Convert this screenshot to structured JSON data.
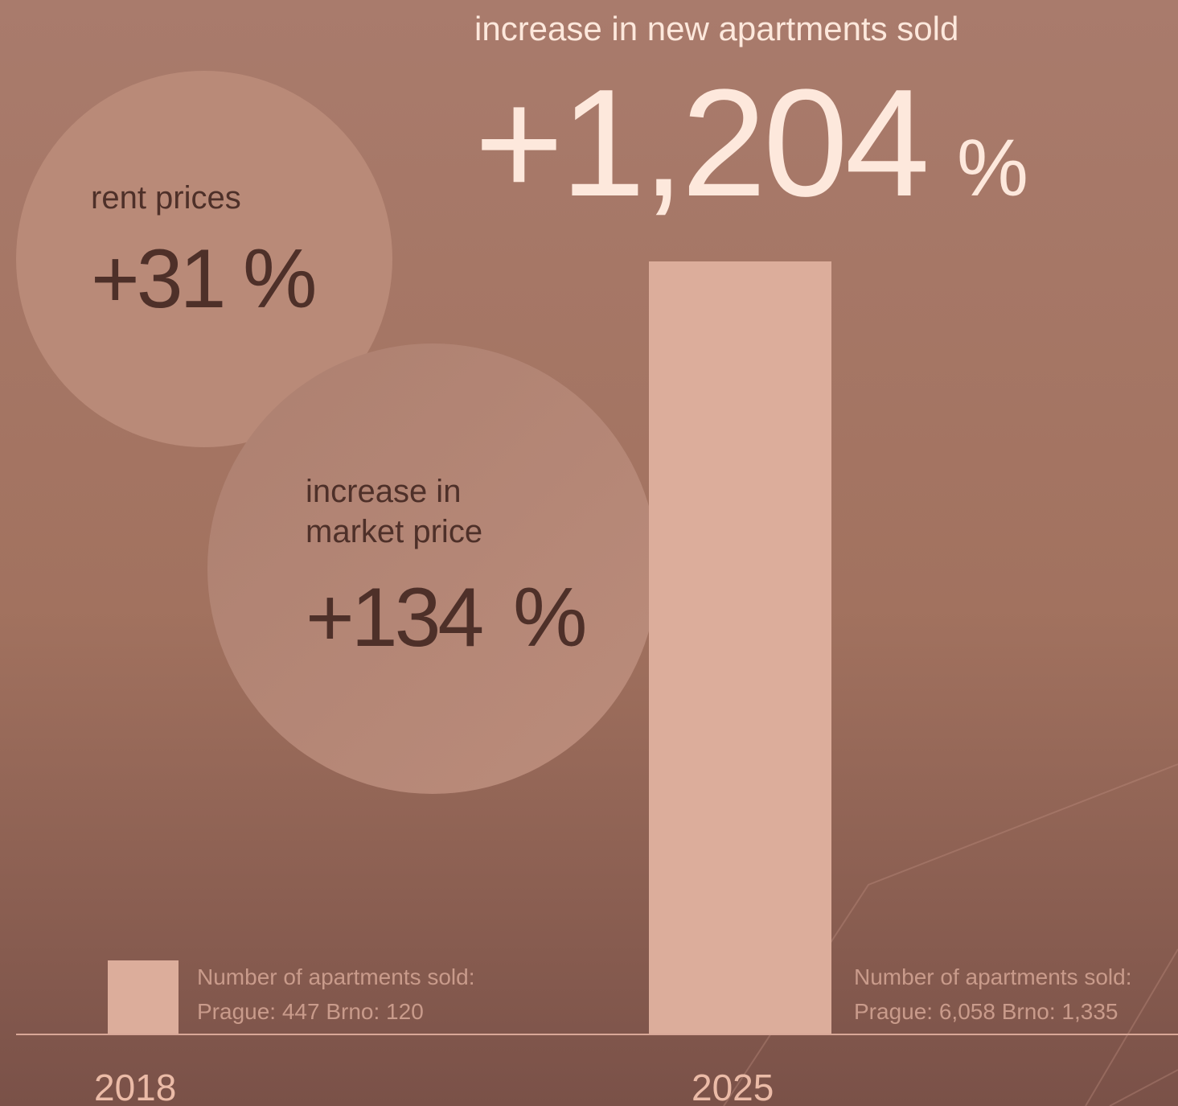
{
  "headline": {
    "label": "increase in new apartments sold",
    "value": "+1,204",
    "unit": "%"
  },
  "stats": [
    {
      "lines": [
        "rent prices"
      ],
      "value": "+31",
      "unit": "%"
    },
    {
      "lines": [
        "increase in",
        "market price"
      ],
      "value": "+134",
      "unit": "%"
    }
  ],
  "bars": [
    {
      "year": "2018",
      "caption": "Number of apartments sold:",
      "detail": "Prague: 447 Brno: 120"
    },
    {
      "year": "2025",
      "caption": "Number of apartments sold:",
      "detail": "Prague: 6,058 Brno: 1,335"
    }
  ]
}
